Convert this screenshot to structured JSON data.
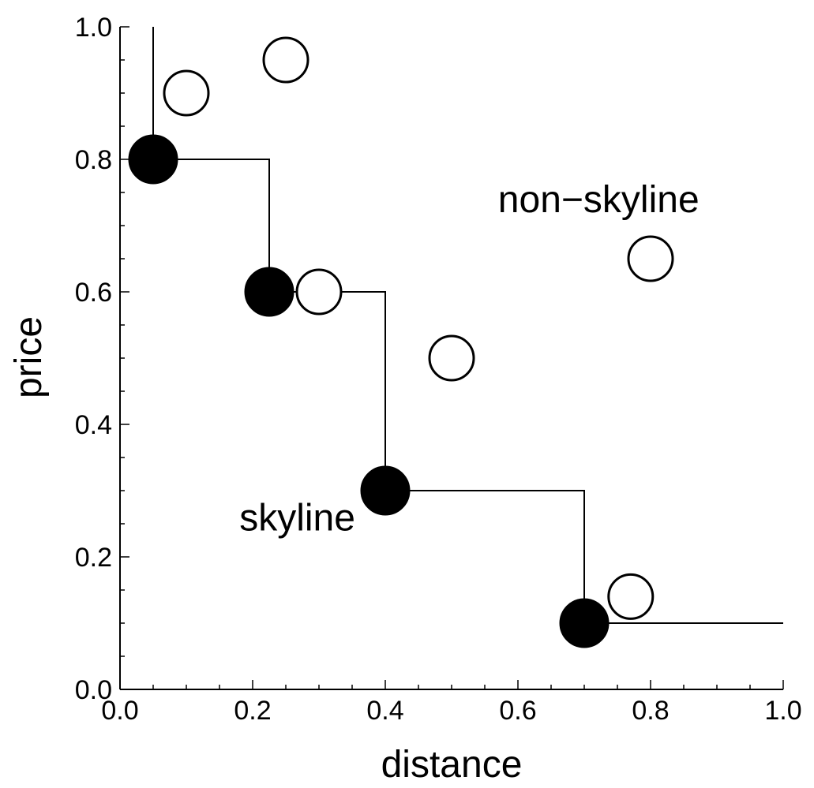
{
  "chart_data": {
    "type": "scatter",
    "xlabel": "distance",
    "ylabel": "price",
    "xlim": [
      0.0,
      1.0
    ],
    "ylim": [
      0.0,
      1.0
    ],
    "x_ticks": [
      "0.0",
      "0.2",
      "0.4",
      "0.6",
      "0.8",
      "1.0"
    ],
    "y_ticks": [
      "0.0",
      "0.2",
      "0.4",
      "0.6",
      "0.8",
      "1.0"
    ],
    "grid": false,
    "series": [
      {
        "marker": "filled-circle",
        "color": "#000000",
        "x": [
          0.05,
          0.225,
          0.4,
          0.7
        ],
        "y": [
          0.8,
          0.6,
          0.3,
          0.1
        ]
      },
      {
        "marker": "open-circle",
        "color": "#000000",
        "x": [
          0.1,
          0.25,
          0.3,
          0.5,
          0.8,
          0.77
        ],
        "y": [
          0.9,
          0.95,
          0.6,
          0.5,
          0.65,
          0.14
        ]
      }
    ],
    "staircase": {
      "x": [
        0.05,
        0.05,
        0.225,
        0.225,
        0.4,
        0.4,
        0.7,
        0.7,
        1.0
      ],
      "y": [
        1.0,
        0.8,
        0.8,
        0.6,
        0.6,
        0.3,
        0.3,
        0.1,
        0.1
      ]
    },
    "annotations": [
      {
        "text": "non−skyline",
        "x": 0.57,
        "y": 0.72
      },
      {
        "text": "skyline",
        "x": 0.18,
        "y": 0.24
      }
    ]
  }
}
